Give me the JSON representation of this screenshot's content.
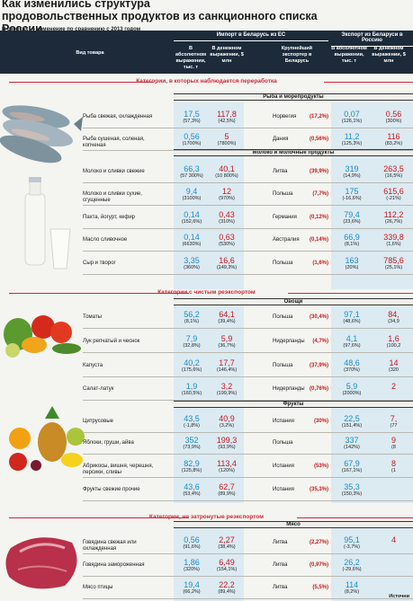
{
  "title_line1": "Как изменились структура",
  "title_line2": "продовольственных продуктов из санкционного списка России",
  "note": "В скобках — изменение по сравнению с 2013 годом",
  "header": {
    "product": "Вид товара",
    "import_group": "Импорт в Беларусь из ЕС",
    "export_group": "Экспорт из Беларуси в Россию",
    "abs": "В абсолютном выражении, тыс. т",
    "money": "В денежном выражении, $ млн",
    "exporter": "Крупнейший экспортер в Беларусь"
  },
  "cat_processing": "Категории, в которых наблюдается переработка",
  "cat_reexport": "Категории с чистым реэкспортом",
  "cat_untouched": "Категории, не затронутые реэкспортом",
  "groups": {
    "fish": "Рыба и морепродукты",
    "milk": "Молоко и молочные продукты",
    "veg": "Овощи",
    "fruit": "Фрукты",
    "meat": "Мясо"
  },
  "rows": [
    {
      "label": "Рыба свежая, охлажденная",
      "imp_t": "17,5",
      "imp_tc": "(57,3%)",
      "imp_m": "117,8",
      "imp_mc": "(42,5%)",
      "country": "Норвегия",
      "share": "(17,2%)",
      "exp_t": "0,07",
      "exp_tc": "(126,1%)",
      "exp_m": "0,56",
      "exp_mc": "(300%)"
    },
    {
      "label": "Рыба сушеная, соленая, копченая",
      "imp_t": "0,56",
      "imp_tc": "(1700%)",
      "imp_m": "5",
      "imp_mc": "(7800%)",
      "country": "Дания",
      "share": "(0,56%)",
      "exp_t": "11,2",
      "exp_tc": "(125,3%)",
      "exp_m": "116",
      "exp_mc": "(83,2%)"
    },
    {
      "label": "Молоко и сливки свежие",
      "imp_t": "66,3",
      "imp_tc": "(57 300%)",
      "imp_m": "40,1",
      "imp_mc": "(10 800%)",
      "country": "Литва",
      "share": "(39,9%)",
      "exp_t": "319",
      "exp_tc": "(14,9%)",
      "exp_m": "263,5",
      "exp_mc": "(16,5%)"
    },
    {
      "label": "Молоко и сливки сухие, сгущенные",
      "imp_t": "9,4",
      "imp_tc": "(3100%)",
      "imp_m": "12",
      "imp_mc": "(970%)",
      "country": "Польша",
      "share": "(7,7%)",
      "exp_t": "175",
      "exp_tc": "(-16,6%)",
      "exp_m": "615,6",
      "exp_mc": "(-21%)"
    },
    {
      "label": "Пахта, йогурт, кефир",
      "imp_t": "0,14",
      "imp_tc": "(152,6%)",
      "imp_m": "0,43",
      "imp_mc": "(310%)",
      "country": "Германия",
      "share": "(0,12%)",
      "exp_t": "79,4",
      "exp_tc": "(23,6%)",
      "exp_m": "112,2",
      "exp_mc": "(26,7%)"
    },
    {
      "label": "Масло сливочное",
      "imp_t": "0,14",
      "imp_tc": "(6630%)",
      "imp_m": "0,63",
      "imp_mc": "(530%)",
      "country": "Австралия",
      "share": "(0,14%)",
      "exp_t": "66,9",
      "exp_tc": "(8,1%)",
      "exp_m": "339,8",
      "exp_mc": "(1,6%)"
    },
    {
      "label": "Сыр и творог",
      "imp_t": "3,35",
      "imp_tc": "(360%)",
      "imp_m": "16,6",
      "imp_mc": "(149,3%)",
      "country": "Польша",
      "share": "(1,6%)",
      "exp_t": "163",
      "exp_tc": "(20%)",
      "exp_m": "785,6",
      "exp_mc": "(25,1%)"
    },
    {
      "label": "Томаты",
      "imp_t": "56,2",
      "imp_tc": "(8,1%)",
      "imp_m": "64,1",
      "imp_mc": "(39,4%)",
      "country": "Польша",
      "share": "(30,4%)",
      "exp_t": "97,1",
      "exp_tc": "(48,6%)",
      "exp_m": "84,",
      "exp_mc": "(34,9"
    },
    {
      "label": "Лук репчатый и чеснок",
      "imp_t": "7,9",
      "imp_tc": "(32,8%)",
      "imp_m": "5,9",
      "imp_mc": "(36,7%)",
      "country": "Нидерланды",
      "share": "(4,7%)",
      "exp_t": "4,1",
      "exp_tc": "(97,6%)",
      "exp_m": "1,6",
      "exp_mc": "(100,2"
    },
    {
      "label": "Капуста",
      "imp_t": "40,2",
      "imp_tc": "(175,6%)",
      "imp_m": "17,7",
      "imp_mc": "(146,4%)",
      "country": "Польша",
      "share": "(37,9%)",
      "exp_t": "48,6",
      "exp_tc": "(370%)",
      "exp_m": "14",
      "exp_mc": "(320"
    },
    {
      "label": "Салат-латук",
      "imp_t": "1,9",
      "imp_tc": "(160,5%)",
      "imp_m": "3,2",
      "imp_mc": "(199,9%)",
      "country": "Нидерланды",
      "share": "(0,76%)",
      "exp_t": "5,9",
      "exp_tc": "(2000%)",
      "exp_m": "2",
      "exp_mc": ""
    },
    {
      "label": "Цитрусовые",
      "imp_t": "43,5",
      "imp_tc": "(-1,8%)",
      "imp_m": "40,9",
      "imp_mc": "(3,2%)",
      "country": "Испания",
      "share": "(30%)",
      "exp_t": "22,5",
      "exp_tc": "(151,4%)",
      "exp_m": "7,",
      "exp_mc": "(77"
    },
    {
      "label": "Яблоки, груши, айва",
      "imp_t": "352",
      "imp_tc": "(73,9%)",
      "imp_m": "199,3",
      "imp_mc": "(93,9%)",
      "country": "Польша",
      "share": "",
      "exp_t": "337",
      "exp_tc": "(142%)",
      "exp_m": "9",
      "exp_mc": "(8"
    },
    {
      "label": "Абрикосы, вишня, черешня, персики, сливы",
      "imp_t": "82,9",
      "imp_tc": "(125,8%)",
      "imp_m": "113,4",
      "imp_mc": "(120%)",
      "country": "Испания",
      "share": "(53%)",
      "exp_t": "67,9",
      "exp_tc": "(167,1%)",
      "exp_m": "8",
      "exp_mc": "(1"
    },
    {
      "label": "Фрукты свежие прочие",
      "imp_t": "43,6",
      "imp_tc": "(53,4%)",
      "imp_m": "62,7",
      "imp_mc": "(89,9%)",
      "country": "Испания",
      "share": "(35,3%)",
      "exp_t": "35,3",
      "exp_tc": "(150,3%)",
      "exp_m": "",
      "exp_mc": ""
    },
    {
      "label": "Говядина свежая или охлажденная",
      "imp_t": "0,56",
      "imp_tc": "(91,6%)",
      "imp_m": "2,27",
      "imp_mc": "(38,4%)",
      "country": "Литва",
      "share": "(2,27%)",
      "exp_t": "95,1",
      "exp_tc": "(-3,7%)",
      "exp_m": "4",
      "exp_mc": ""
    },
    {
      "label": "Говядина замороженная",
      "imp_t": "1,86",
      "imp_tc": "(320%)",
      "imp_m": "6,49",
      "imp_mc": "(154,1%)",
      "country": "Литва",
      "share": "(0,97%)",
      "exp_t": "26,2",
      "exp_tc": "(-29,6%)",
      "exp_m": "",
      "exp_mc": ""
    },
    {
      "label": "Мясо птицы",
      "imp_t": "19,4",
      "imp_tc": "(66,2%)",
      "imp_m": "22,2",
      "imp_mc": "(89,4%)",
      "country": "Литва",
      "share": "(5,5%)",
      "exp_t": "114",
      "exp_tc": "(8,2%)",
      "exp_m": "",
      "exp_mc": ""
    }
  ],
  "source": "Источни"
}
